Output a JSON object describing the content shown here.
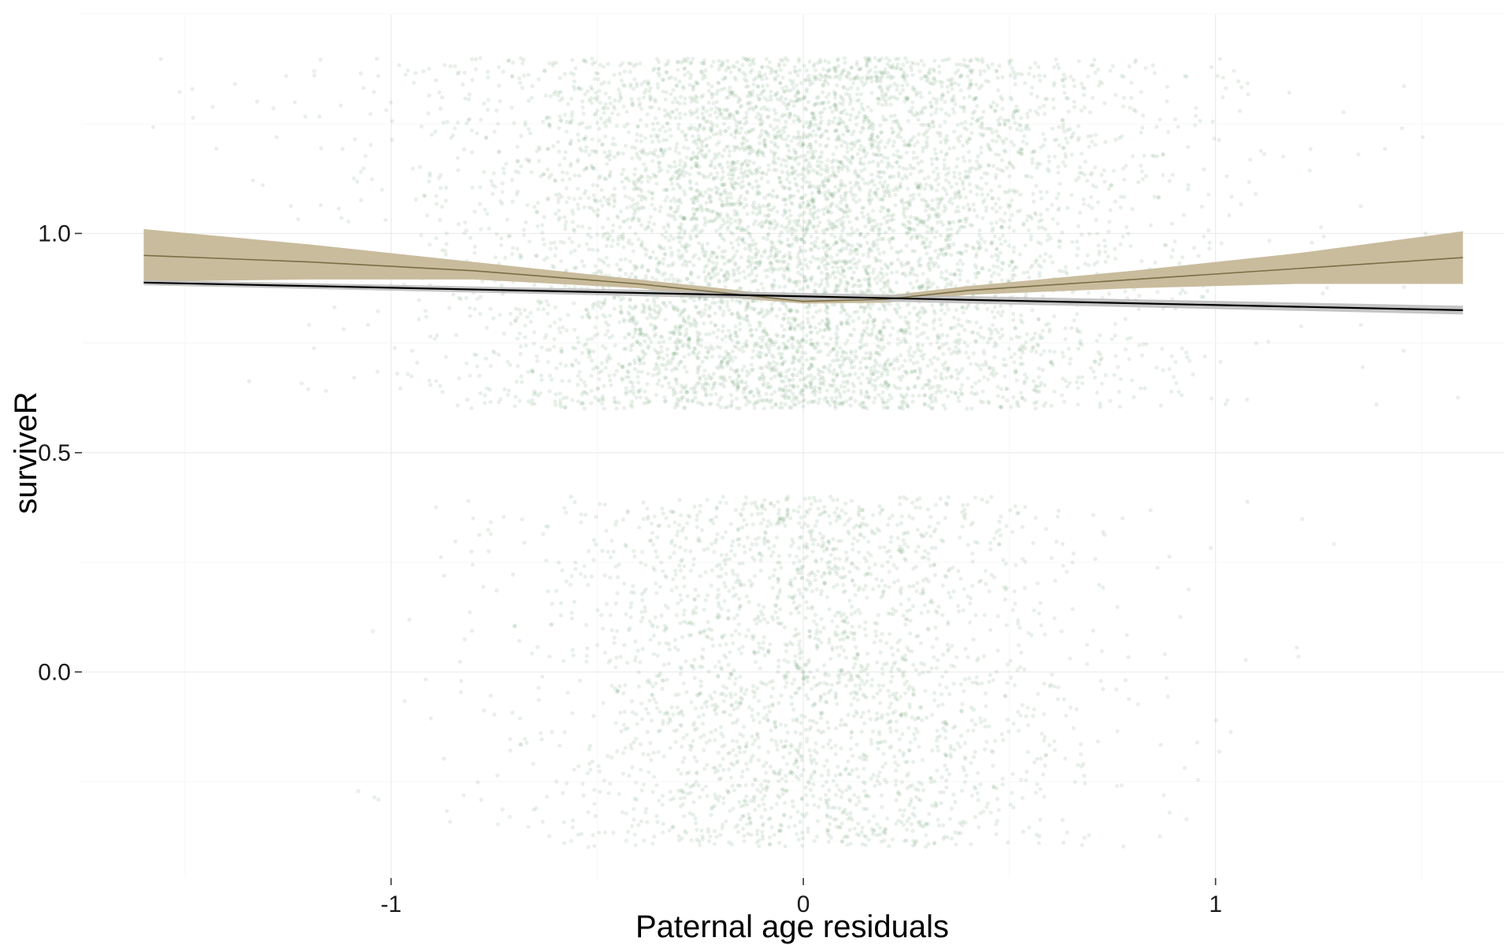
{
  "chart_data": {
    "type": "scatter",
    "title": "",
    "xlabel": "Paternal age residuals",
    "ylabel": "surviveR",
    "xlim": [
      -1.75,
      1.7
    ],
    "ylim": [
      -0.47,
      1.5
    ],
    "x_ticks": [
      {
        "value": -1,
        "label": "-1"
      },
      {
        "value": 0,
        "label": "0"
      },
      {
        "value": 1,
        "label": "1"
      }
    ],
    "y_ticks": [
      {
        "value": 0.0,
        "label": "0.0"
      },
      {
        "value": 0.5,
        "label": "0.5"
      },
      {
        "value": 1.0,
        "label": "1.0"
      }
    ],
    "grid": true,
    "legend": "none",
    "points": {
      "description": "jittered binary outcome (0 = not survived, 1 = survived)",
      "color": "#4a8d55",
      "opacity": 0.13,
      "jitter_y": 0.4,
      "groups": [
        {
          "outcome": 1,
          "y_range": [
            0.6,
            1.4
          ],
          "x_center": 0.0,
          "x_sd": 0.38,
          "x_range": [
            -1.6,
            1.65
          ]
        },
        {
          "outcome": 0,
          "y_range": [
            -0.4,
            0.4
          ],
          "x_center": 0.0,
          "x_sd": 0.3,
          "x_range": [
            -1.1,
            1.3
          ]
        }
      ]
    },
    "series": [
      {
        "type": "smooth",
        "color": "#7a6e45",
        "band_color": "#c6b898",
        "x": [
          -1.6,
          -1.2,
          -0.8,
          -0.4,
          -0.2,
          0.0,
          0.2,
          0.4,
          0.8,
          1.2,
          1.6
        ],
        "y": [
          0.95,
          0.935,
          0.915,
          0.885,
          0.865,
          0.845,
          0.85,
          0.87,
          0.895,
          0.92,
          0.945
        ],
        "lower": [
          0.89,
          0.895,
          0.895,
          0.875,
          0.855,
          0.84,
          0.842,
          0.86,
          0.875,
          0.885,
          0.885
        ],
        "upper": [
          1.01,
          0.975,
          0.935,
          0.895,
          0.875,
          0.852,
          0.858,
          0.88,
          0.915,
          0.955,
          1.005
        ]
      },
      {
        "type": "linear",
        "color": "#000000",
        "band_color": "#bbbbbb",
        "x": [
          -1.6,
          1.6
        ],
        "y": [
          0.888,
          0.825
        ],
        "lower": [
          0.882,
          0.815
        ],
        "upper": [
          0.894,
          0.835
        ]
      }
    ]
  }
}
